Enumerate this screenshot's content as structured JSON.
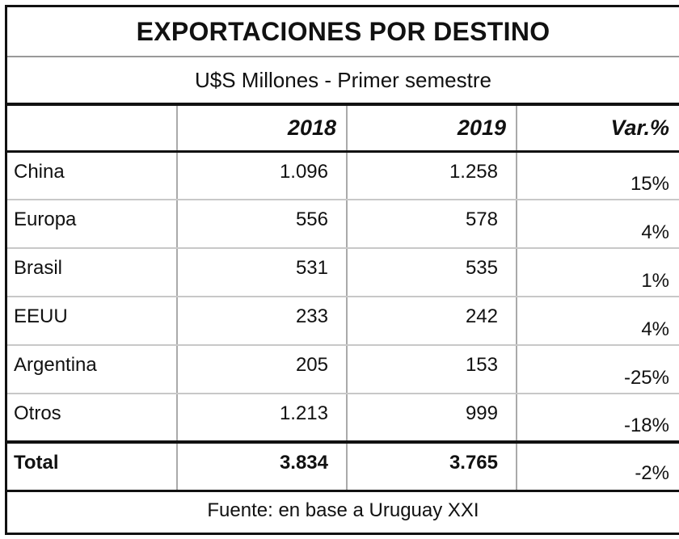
{
  "chart_data": {
    "type": "table",
    "title": "EXPORTACIONES POR DESTINO",
    "subtitle": "U$S Millones - Primer semestre",
    "columns": [
      "",
      "2018",
      "2019",
      "Var.%"
    ],
    "rows": [
      {
        "category": "China",
        "v2018": "1.096",
        "v2019": "1.258",
        "var": "15%"
      },
      {
        "category": "Europa",
        "v2018": "556",
        "v2019": "578",
        "var": "4%"
      },
      {
        "category": "Brasil",
        "v2018": "531",
        "v2019": "535",
        "var": "1%"
      },
      {
        "category": "EEUU",
        "v2018": "233",
        "v2019": "242",
        "var": "4%"
      },
      {
        "category": "Argentina",
        "v2018": "205",
        "v2019": "153",
        "var": "-25%"
      },
      {
        "category": "Otros",
        "v2018": "1.213",
        "v2019": "999",
        "var": "-18%"
      }
    ],
    "total": {
      "category": "Total",
      "v2018": "3.834",
      "v2019": "3.765",
      "var": "-2%"
    },
    "source": "Fuente: en base a Uruguay XXI"
  }
}
